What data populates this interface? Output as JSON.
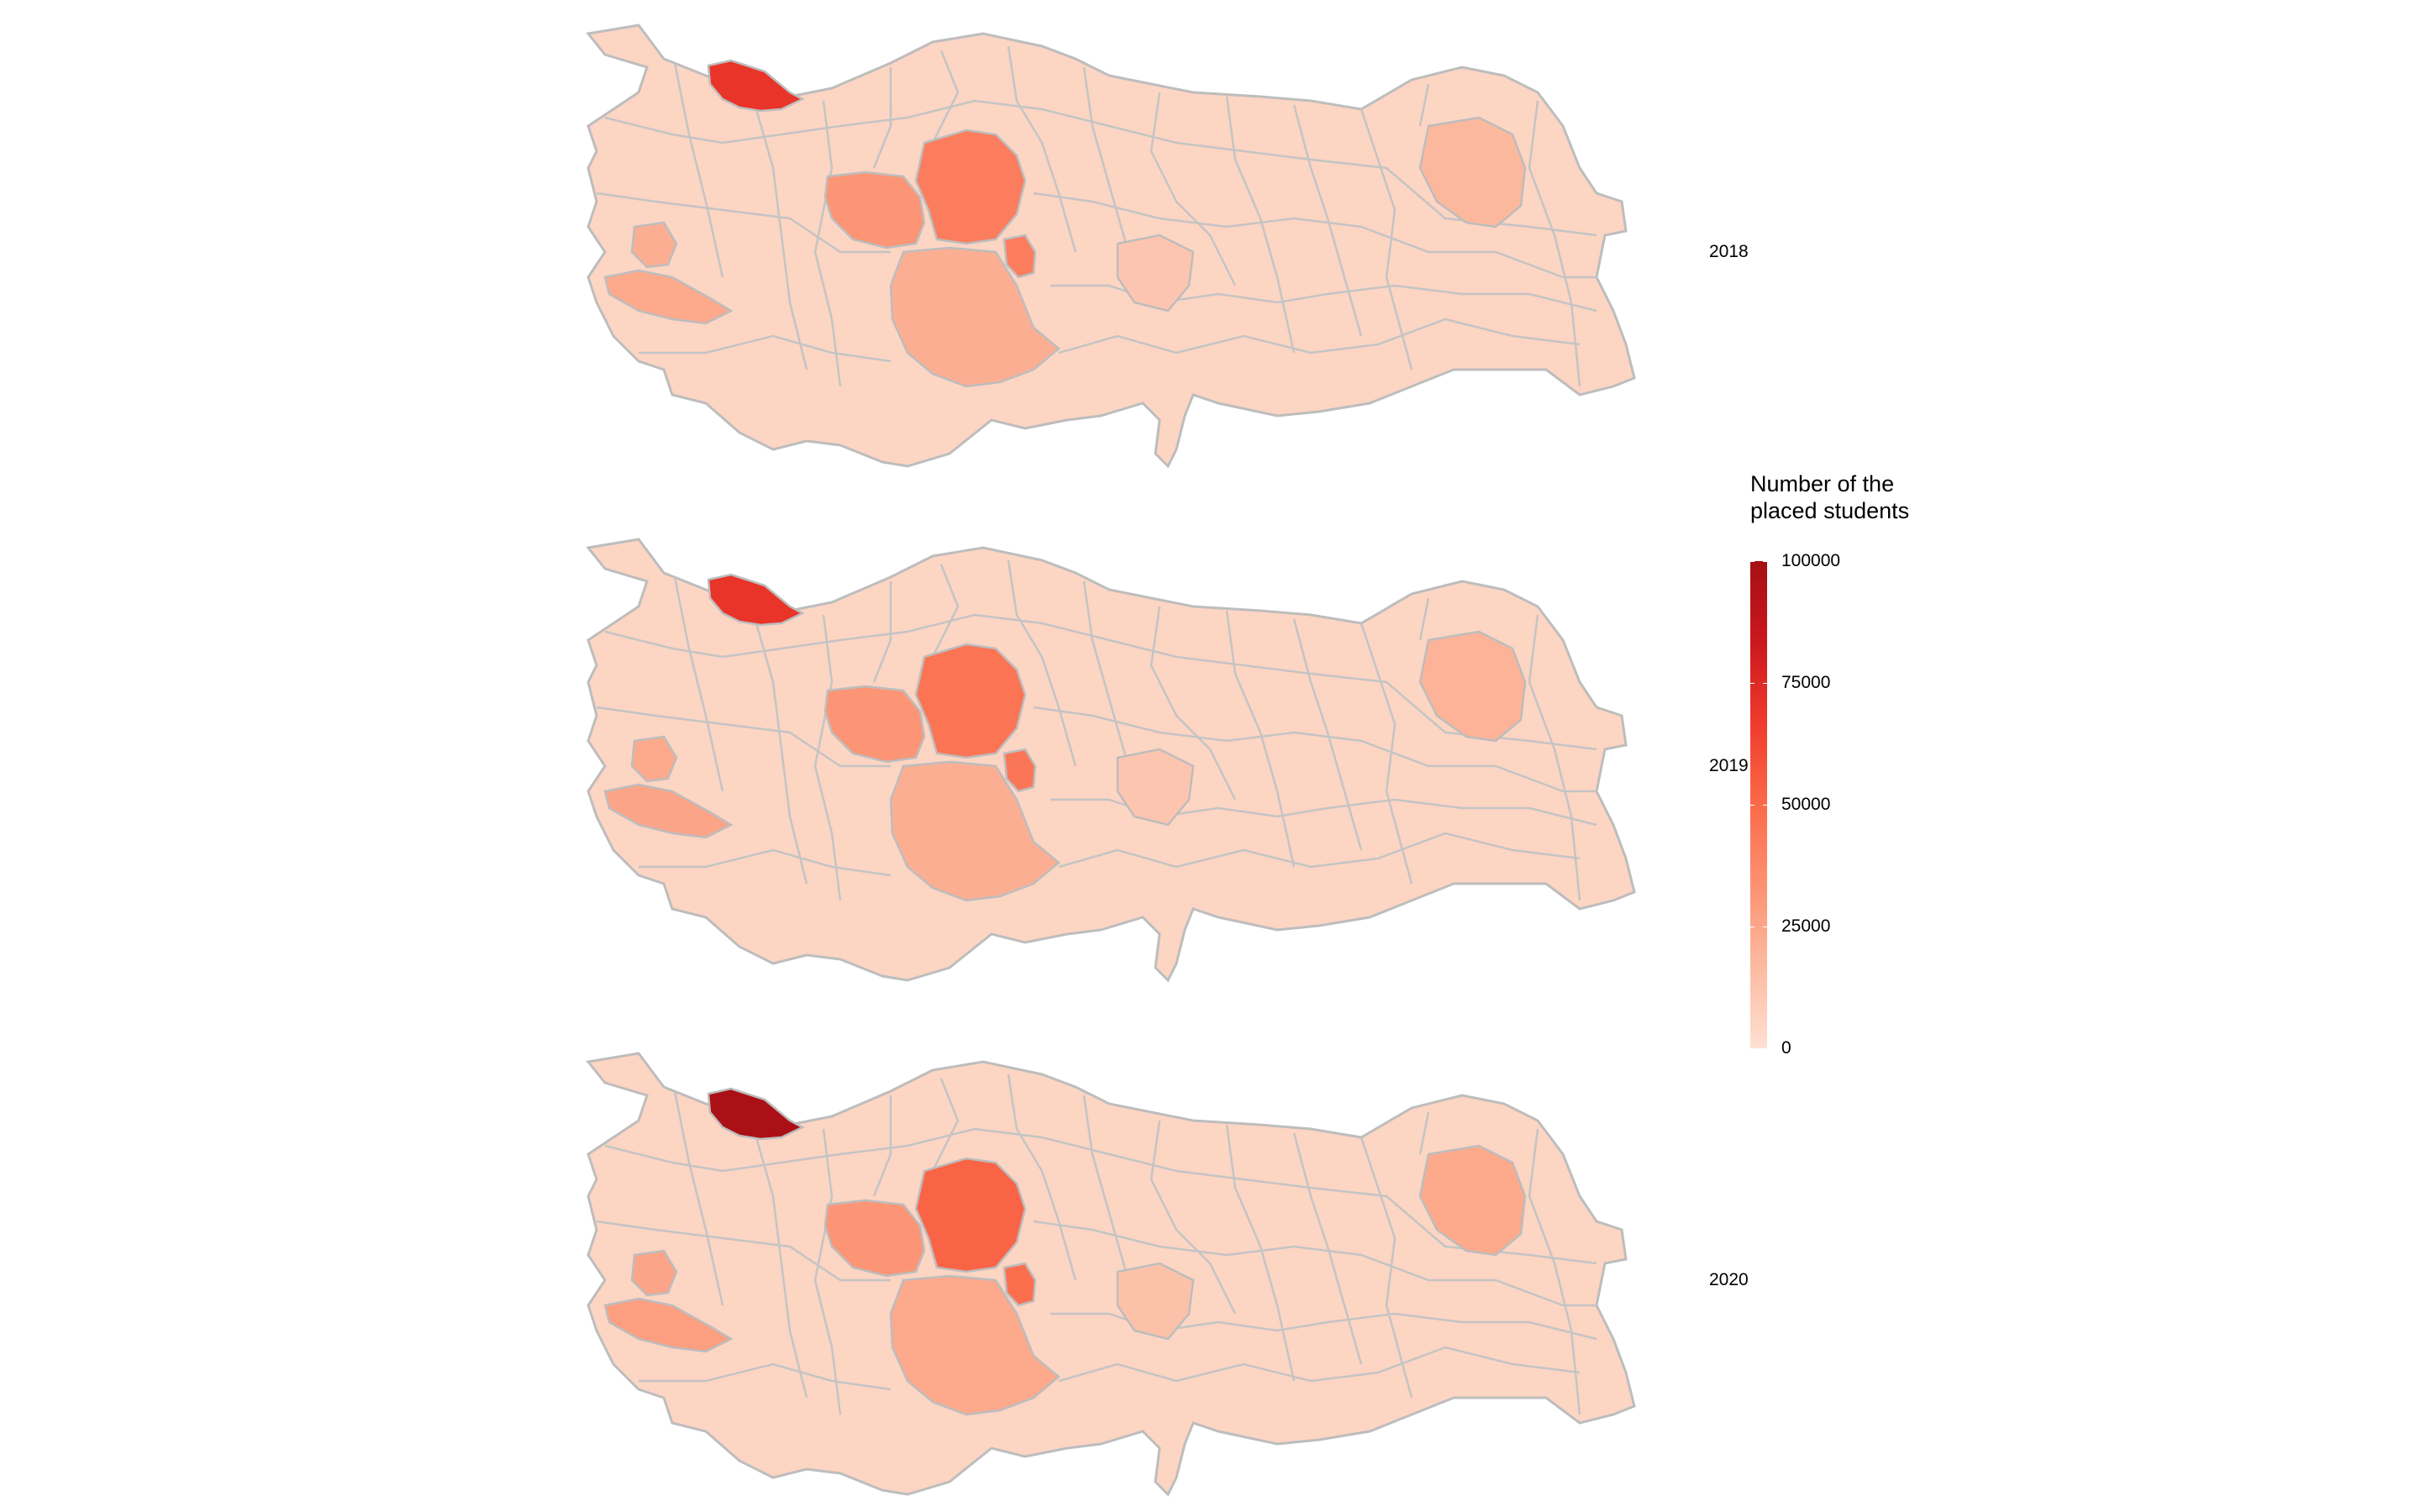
{
  "map": {
    "legend_title": "Number of the\nplaced students",
    "scale": {
      "min": 0,
      "max": 100000,
      "ticks": [
        "100000",
        "75000",
        "50000",
        "25000",
        "0"
      ],
      "colors": [
        "#fee0d2",
        "#fcbba1",
        "#fc9272",
        "#fb6a4a",
        "#ef3b2c",
        "#cb181d",
        "#a50f15"
      ]
    },
    "panels": [
      {
        "label": "2018",
        "values": {
          "istanbul": 70000,
          "ankara": 42000,
          "eskisehir": 32000,
          "kirikkale": 42000,
          "konya": 22000,
          "izmir": 24000,
          "manisa": 22000,
          "erzurum": 18000,
          "malatya": 12000
        }
      },
      {
        "label": "2019",
        "values": {
          "istanbul": 70000,
          "ankara": 46000,
          "eskisehir": 32000,
          "kirikkale": 45000,
          "konya": 22000,
          "izmir": 26000,
          "manisa": 24000,
          "erzurum": 20000,
          "malatya": 12000
        }
      },
      {
        "label": "2020",
        "values": {
          "istanbul": 98000,
          "ankara": 52000,
          "eskisehir": 32000,
          "kirikkale": 48000,
          "konya": 24000,
          "izmir": 28000,
          "manisa": 26000,
          "erzurum": 24000,
          "malatya": 14000
        }
      }
    ]
  }
}
